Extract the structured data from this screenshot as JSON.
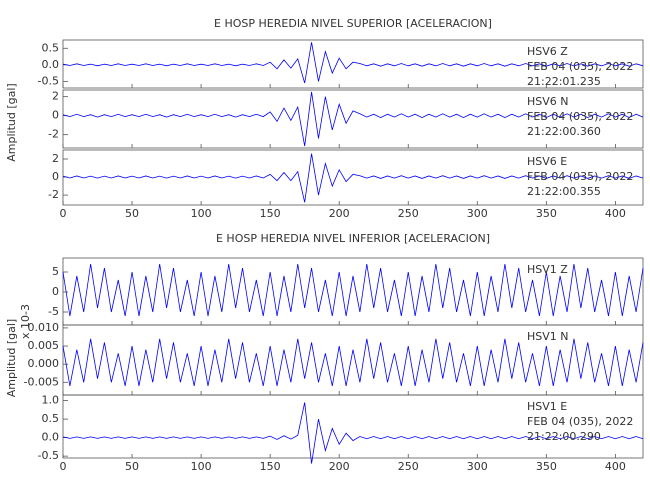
{
  "chart_data": [
    {
      "type": "line",
      "title": "E HOSP HEREDIA NIVEL SUPERIOR [ACELERACION]",
      "ylabel": "Amplitud [gal]",
      "xlim": [
        0,
        420
      ],
      "xticks": [
        0,
        50,
        100,
        150,
        200,
        250,
        300,
        350,
        400
      ],
      "x": [
        0,
        5,
        10,
        15,
        20,
        25,
        30,
        35,
        40,
        45,
        50,
        55,
        60,
        65,
        70,
        75,
        80,
        85,
        90,
        95,
        100,
        105,
        110,
        115,
        120,
        125,
        130,
        135,
        140,
        145,
        150,
        155,
        160,
        165,
        170,
        175,
        180,
        185,
        190,
        195,
        200,
        205,
        210,
        215,
        220,
        225,
        230,
        235,
        240,
        245,
        250,
        255,
        260,
        265,
        270,
        275,
        280,
        285,
        290,
        295,
        300,
        305,
        310,
        315,
        320,
        325,
        330,
        335,
        340,
        345,
        350,
        355,
        360,
        365,
        370,
        375,
        380,
        385,
        390,
        395,
        400,
        405,
        410,
        415,
        420
      ],
      "panels": [
        {
          "color": "#0000ff",
          "ylim": [
            -0.7,
            0.75
          ],
          "yticks": [
            {
              "value": 0.5,
              "label": "0.5"
            },
            {
              "value": 0,
              "label": "0.0"
            },
            {
              "value": -0.5,
              "label": "-0.5"
            }
          ],
          "annotations": [
            "HSV6   Z",
            "FEB 04 (035), 2022",
            "21:22:01.235"
          ],
          "values": [
            0.02,
            -0.02,
            0.03,
            -0.02,
            0.02,
            -0.03,
            0.02,
            -0.02,
            0.03,
            -0.02,
            0.02,
            -0.02,
            0.03,
            -0.02,
            0.02,
            -0.03,
            0.02,
            -0.02,
            0.03,
            -0.02,
            0.02,
            -0.02,
            0.03,
            -0.02,
            0.02,
            -0.03,
            0.02,
            -0.02,
            0.03,
            -0.02,
            0.08,
            -0.12,
            0.15,
            -0.1,
            0.18,
            -0.55,
            0.68,
            -0.5,
            0.4,
            -0.25,
            0.2,
            -0.12,
            0.08,
            0.04,
            -0.03,
            0.03,
            -0.04,
            0.03,
            -0.03,
            0.04,
            -0.03,
            0.03,
            -0.04,
            0.03,
            -0.03,
            0.04,
            -0.03,
            0.03,
            -0.04,
            0.03,
            -0.03,
            0.04,
            -0.03,
            0.03,
            -0.04,
            0.03,
            -0.03,
            0.04,
            -0.03,
            0.03,
            -0.04,
            0.03,
            -0.03,
            0.04,
            -0.03,
            0.03,
            -0.04,
            0.03,
            -0.03,
            0.04,
            -0.03,
            0.03,
            -0.04,
            0.03,
            -0.03
          ]
        },
        {
          "color": "#0000ff",
          "ylim": [
            -3.4,
            2.7
          ],
          "yticks": [
            2,
            0,
            -2
          ],
          "annotations": [
            "HSV6   N",
            "FEB 04 (035), 2022",
            "21:22:00.360"
          ],
          "values": [
            0.1,
            -0.1,
            0.15,
            -0.1,
            0.1,
            -0.15,
            0.1,
            -0.1,
            0.15,
            -0.1,
            0.1,
            -0.1,
            0.15,
            -0.1,
            0.1,
            -0.15,
            0.1,
            -0.1,
            0.15,
            -0.1,
            0.1,
            -0.1,
            0.15,
            -0.1,
            0.1,
            -0.15,
            0.1,
            -0.1,
            0.15,
            -0.1,
            0.4,
            -0.6,
            0.8,
            -0.5,
            0.9,
            -3.2,
            2.5,
            -2.4,
            2.0,
            -1.5,
            1.2,
            -0.8,
            0.5,
            0.2,
            -0.15,
            0.15,
            -0.2,
            0.15,
            -0.15,
            0.2,
            -0.15,
            0.15,
            -0.2,
            0.15,
            -0.15,
            0.2,
            -0.15,
            0.15,
            -0.2,
            0.15,
            -0.15,
            0.2,
            -0.15,
            0.15,
            -0.2,
            0.15,
            -0.15,
            0.2,
            -0.15,
            0.15,
            -0.2,
            0.15,
            -0.15,
            0.2,
            -0.15,
            0.15,
            -0.2,
            0.15,
            -0.15,
            0.2,
            -0.15,
            0.15,
            -0.2,
            0.15,
            -0.15
          ]
        },
        {
          "color": "#0000ff",
          "ylim": [
            -3.1,
            3.0
          ],
          "yticks": [
            2,
            0,
            -2
          ],
          "annotations": [
            "HSV6   E",
            "FEB 04 (035), 2022",
            "21:22:00.355"
          ],
          "values": [
            0.1,
            -0.1,
            0.12,
            -0.1,
            0.1,
            -0.12,
            0.1,
            -0.1,
            0.12,
            -0.1,
            0.1,
            -0.1,
            0.12,
            -0.1,
            0.1,
            -0.12,
            0.1,
            -0.1,
            0.12,
            -0.1,
            0.1,
            -0.1,
            0.12,
            -0.1,
            0.1,
            -0.12,
            0.1,
            -0.1,
            0.12,
            -0.1,
            0.3,
            -0.4,
            0.5,
            -0.4,
            0.6,
            -2.8,
            2.6,
            -2.0,
            1.5,
            -1.0,
            0.8,
            -0.5,
            0.3,
            0.15,
            -0.12,
            0.12,
            -0.15,
            0.12,
            -0.12,
            0.15,
            -0.12,
            0.12,
            -0.15,
            0.12,
            -0.12,
            0.15,
            -0.12,
            0.12,
            -0.15,
            0.12,
            -0.12,
            0.15,
            -0.12,
            0.12,
            -0.15,
            0.12,
            -0.12,
            0.15,
            -0.12,
            0.12,
            -0.15,
            0.12,
            -0.12,
            0.15,
            -0.12,
            0.12,
            -0.15,
            0.12,
            -0.12,
            0.15,
            -0.12,
            0.12,
            -0.15,
            0.12,
            -0.12
          ]
        }
      ]
    },
    {
      "type": "line",
      "title": "E HOSP HEREDIA NIVEL INFERIOR [ACELERACION]",
      "ylabel": "Amplitud [gal]",
      "scale_label": "x 10-3",
      "xlim": [
        0,
        420
      ],
      "xticks": [
        0,
        50,
        100,
        150,
        200,
        250,
        300,
        350,
        400
      ],
      "x": [
        0,
        5,
        10,
        15,
        20,
        25,
        30,
        35,
        40,
        45,
        50,
        55,
        60,
        65,
        70,
        75,
        80,
        85,
        90,
        95,
        100,
        105,
        110,
        115,
        120,
        125,
        130,
        135,
        140,
        145,
        150,
        155,
        160,
        165,
        170,
        175,
        180,
        185,
        190,
        195,
        200,
        205,
        210,
        215,
        220,
        225,
        230,
        235,
        240,
        245,
        250,
        255,
        260,
        265,
        270,
        275,
        280,
        285,
        290,
        295,
        300,
        305,
        310,
        315,
        320,
        325,
        330,
        335,
        340,
        345,
        350,
        355,
        360,
        365,
        370,
        375,
        380,
        385,
        390,
        395,
        400,
        405,
        410,
        415,
        420
      ],
      "panels": [
        {
          "color": "#0000ff",
          "ylim": [
            -8.25,
            8.5
          ],
          "yticks": [
            5,
            0,
            -5
          ],
          "annotations": [
            "HSV1   Z"
          ],
          "values": [
            5,
            -6,
            4,
            -5,
            7,
            -4,
            6,
            -5,
            3,
            -6,
            5,
            -6,
            4,
            -5,
            7,
            -4,
            6,
            -5,
            3,
            -6,
            5,
            -6,
            4,
            -5,
            7,
            -4,
            6,
            -5,
            3,
            -6,
            5,
            -6,
            4,
            -5,
            7,
            -4,
            6,
            -5,
            3,
            -6,
            5,
            -6,
            4,
            -5,
            7,
            -4,
            6,
            -5,
            3,
            -6,
            5,
            -6,
            4,
            -5,
            7,
            -4,
            6,
            -5,
            3,
            -6,
            5,
            -6,
            4,
            -5,
            7,
            -4,
            6,
            -5,
            3,
            -6,
            5,
            -6,
            4,
            -5,
            7,
            -4,
            6,
            -5,
            3,
            -6,
            5,
            -6,
            4,
            -5,
            6
          ]
        },
        {
          "color": "#0000ff",
          "ylim": [
            -0.0085,
            0.0108
          ],
          "yticks": [
            {
              "value": 0.01,
              "label": "0.010"
            },
            0.005,
            {
              "value": 0,
              "label": "0.000"
            },
            -0.005
          ],
          "annotations": [
            "HSV1   N"
          ],
          "values": [
            0.005,
            -0.006,
            0.004,
            -0.005,
            0.007,
            -0.004,
            0.006,
            -0.005,
            0.003,
            -0.006,
            0.005,
            -0.006,
            0.004,
            -0.005,
            0.007,
            -0.004,
            0.006,
            -0.005,
            0.003,
            -0.006,
            0.005,
            -0.006,
            0.004,
            -0.005,
            0.007,
            -0.004,
            0.006,
            -0.005,
            0.003,
            -0.006,
            0.005,
            -0.006,
            0.004,
            -0.005,
            0.007,
            -0.004,
            0.006,
            -0.005,
            0.003,
            -0.006,
            0.005,
            -0.006,
            0.004,
            -0.005,
            0.007,
            -0.004,
            0.006,
            -0.005,
            0.003,
            -0.006,
            0.005,
            -0.006,
            0.004,
            -0.005,
            0.007,
            -0.004,
            0.006,
            -0.005,
            0.003,
            -0.006,
            0.005,
            -0.006,
            0.004,
            -0.005,
            0.007,
            -0.004,
            0.006,
            -0.005,
            0.003,
            -0.006,
            0.005,
            -0.006,
            0.004,
            -0.005,
            0.007,
            -0.004,
            0.006,
            -0.005,
            0.003,
            -0.006,
            0.005,
            -0.006,
            0.004,
            -0.005,
            0.006
          ]
        },
        {
          "color": "#0000ff",
          "ylim": [
            -0.55,
            1.15
          ],
          "yticks": [
            {
              "value": 1,
              "label": "1.0"
            },
            {
              "value": 0.5,
              "label": "0.5"
            },
            {
              "value": 0,
              "label": "0.0"
            },
            -0.5
          ],
          "annotations": [
            "HSV1   E",
            "FEB 04 (035), 2022",
            "21:22:00.290"
          ],
          "values": [
            0.02,
            -0.02,
            0.02,
            -0.02,
            0.02,
            -0.02,
            0.02,
            -0.02,
            0.02,
            -0.02,
            0.02,
            -0.02,
            0.02,
            -0.02,
            0.02,
            -0.02,
            0.02,
            -0.02,
            0.02,
            -0.02,
            0.02,
            -0.02,
            0.02,
            -0.02,
            0.02,
            -0.02,
            0.02,
            -0.02,
            0.02,
            -0.02,
            0.04,
            -0.05,
            0.05,
            -0.04,
            0.06,
            0.95,
            -0.7,
            0.5,
            -0.35,
            0.25,
            -0.18,
            0.12,
            -0.08,
            0.03,
            -0.03,
            0.03,
            -0.03,
            0.03,
            -0.03,
            0.03,
            -0.03,
            0.03,
            -0.03,
            0.03,
            -0.03,
            0.03,
            -0.03,
            0.03,
            -0.03,
            0.03,
            -0.03,
            0.03,
            -0.03,
            0.03,
            -0.03,
            0.03,
            -0.03,
            0.03,
            -0.03,
            0.03,
            -0.03,
            0.03,
            -0.03,
            0.03,
            -0.03,
            0.03,
            -0.03,
            0.03,
            -0.03,
            0.03,
            -0.03,
            0.03,
            -0.03,
            0.03,
            -0.03
          ]
        }
      ]
    }
  ]
}
